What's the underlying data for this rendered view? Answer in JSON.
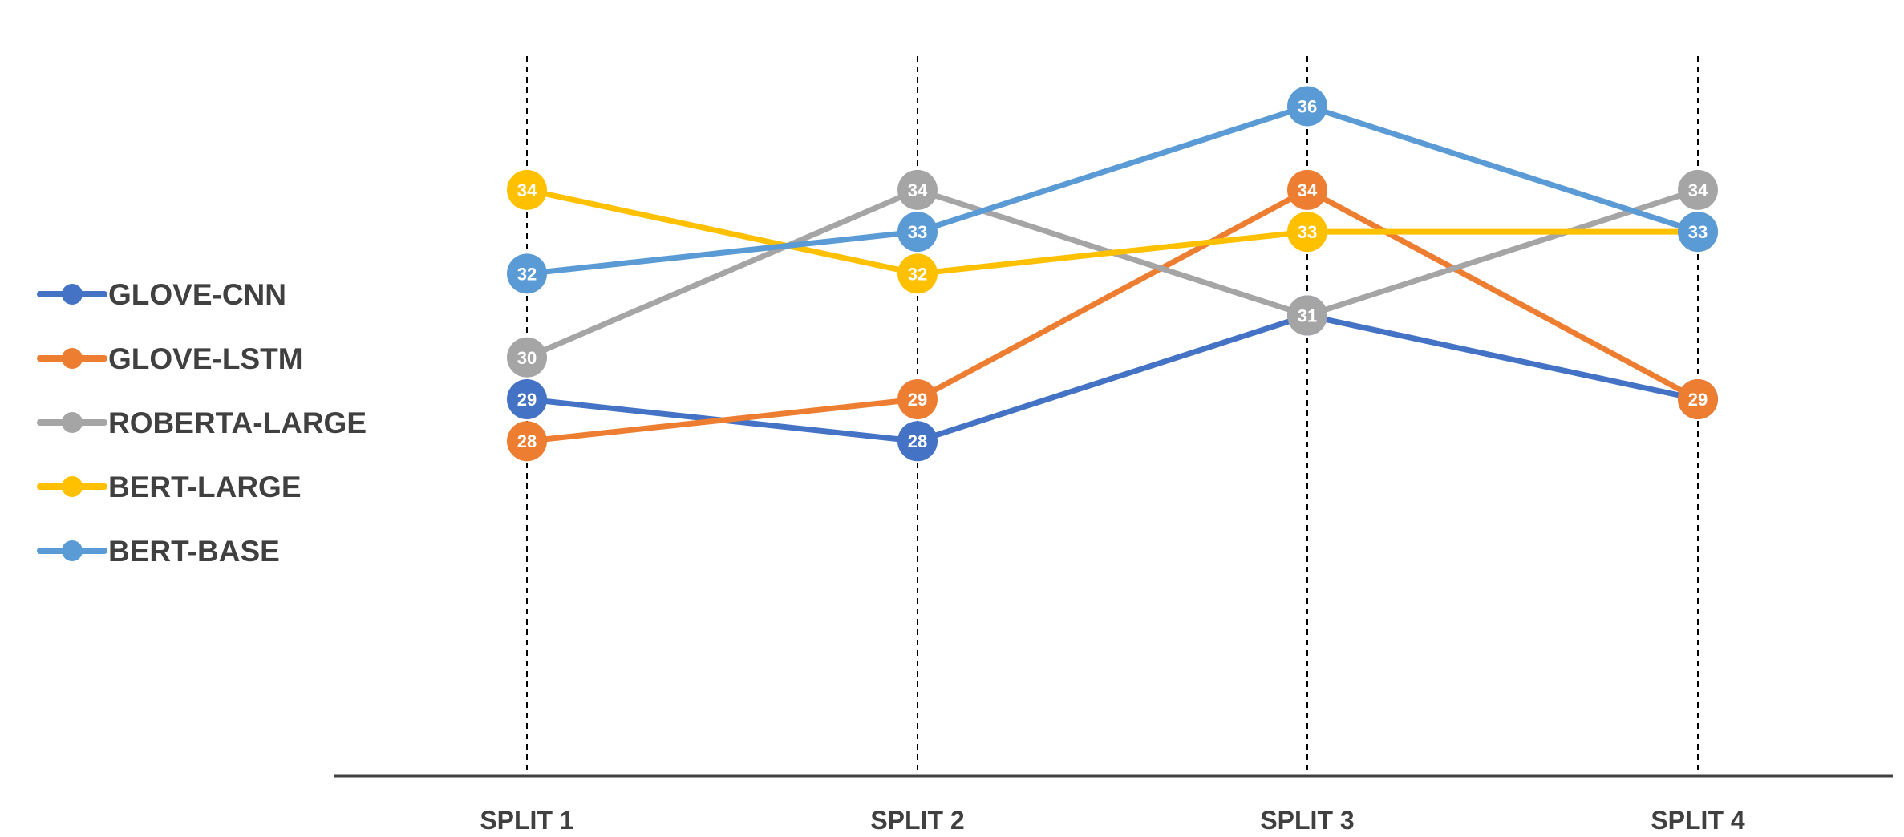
{
  "chart_data": {
    "type": "line",
    "categories": [
      "SPLIT 1",
      "SPLIT 2",
      "SPLIT 3",
      "SPLIT 4"
    ],
    "series": [
      {
        "name": "GLOVE-CNN",
        "color": "#4472C4",
        "values": [
          29,
          28,
          31,
          29
        ]
      },
      {
        "name": "GLOVE-LSTM",
        "color": "#ED7D31",
        "values": [
          28,
          29,
          34,
          29
        ]
      },
      {
        "name": "ROBERTA-LARGE",
        "color": "#A5A5A5",
        "values": [
          30,
          34,
          31,
          34
        ]
      },
      {
        "name": "BERT-LARGE",
        "color": "#FFC000",
        "values": [
          34,
          32,
          33,
          33
        ]
      },
      {
        "name": "BERT-BASE",
        "color": "#5B9BD5",
        "values": [
          32,
          33,
          36,
          33
        ]
      }
    ],
    "title": "",
    "xlabel": "",
    "ylabel": "",
    "ylim": [
      20,
      38
    ],
    "grid": "dashed vertical lines at each category",
    "legend": "left",
    "data_labels": true
  }
}
